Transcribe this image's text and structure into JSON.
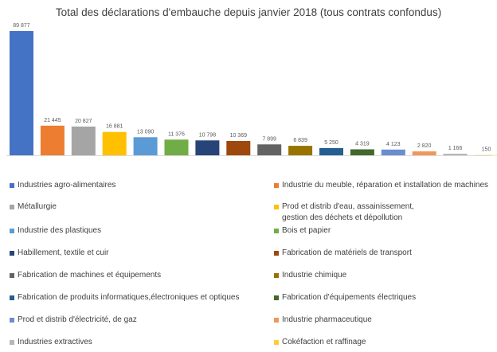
{
  "chart_data": {
    "type": "bar",
    "title": "Total des déclarations d'embauche depuis janvier 2018 (tous contrats confondus)",
    "categories": [
      "Industries agro-alimentaires",
      "Industrie du meuble, réparation et installation de machines",
      "Métallurgie",
      "Prod et distrib d'eau, assainissement,\ngestion des déchets et dépollution",
      "Industrie des plastiques",
      "Bois et papier",
      "Habillement, textile et cuir",
      "Fabrication de matériels de transport",
      "Fabrication de machines et équipements",
      "Industrie chimique",
      "Fabrication de produits informatiques,électroniques et optiques",
      "Fabrication d'équipements électriques",
      "Prod et distrib d'électricité, de gaz",
      "Industrie pharmaceutique",
      "Industries extractives",
      "Cokéfaction et raffinage"
    ],
    "values": [
      89877,
      21445,
      20827,
      16881,
      13090,
      11376,
      10798,
      10369,
      7899,
      6839,
      5250,
      4319,
      4123,
      2820,
      1166,
      150
    ],
    "data_labels": [
      "89 877",
      "21 445",
      "20 827",
      "16 881",
      "13 090",
      "11 376",
      "10 798",
      "10 369",
      "7 899",
      "6 839",
      "5 250",
      "4 319",
      "4 123",
      "2 820",
      "1 166",
      "150"
    ],
    "colors": [
      "#4472C4",
      "#ED7D31",
      "#A5A5A5",
      "#FFC000",
      "#5B9BD5",
      "#70AD47",
      "#264478",
      "#9E480E",
      "#636363",
      "#997300",
      "#255E91",
      "#43682B",
      "#698ED0",
      "#F1975A",
      "#B7B7B7",
      "#FFCD33"
    ],
    "ylim": [
      0,
      89877
    ],
    "grid": false,
    "legend_position": "bottom"
  }
}
